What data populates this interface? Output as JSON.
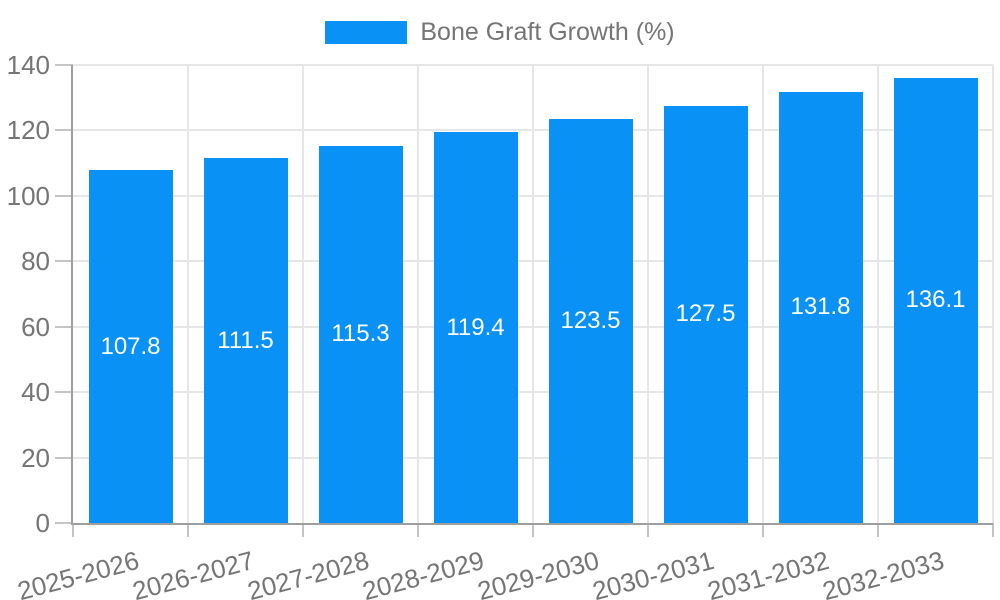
{
  "chart_data": {
    "type": "bar",
    "title": "Bone Graft Growth (%)",
    "categories": [
      "2025-2026",
      "2026-2027",
      "2027-2028",
      "2028-2029",
      "2029-2030",
      "2030-2031",
      "2031-2032",
      "2032-2033"
    ],
    "values": [
      107.8,
      111.5,
      115.3,
      119.4,
      123.5,
      127.5,
      131.8,
      136.1
    ],
    "value_labels": [
      "107.8",
      "111.5",
      "115.3",
      "119.4",
      "123.5",
      "127.5",
      "131.8",
      "136.1"
    ],
    "xlabel": "",
    "ylabel": "",
    "ylim": [
      0,
      140
    ],
    "yticks": [
      0,
      20,
      40,
      60,
      80,
      100,
      120,
      140
    ],
    "grid": true,
    "legend_position": "top-center",
    "bar_color": "#0991f6",
    "bar_label_color": "#ffffff",
    "grid_color": "#e6e6e6",
    "axis_color": "#9e9e9e",
    "tick_color": "#c4c4c4",
    "text_color": "#757575"
  }
}
